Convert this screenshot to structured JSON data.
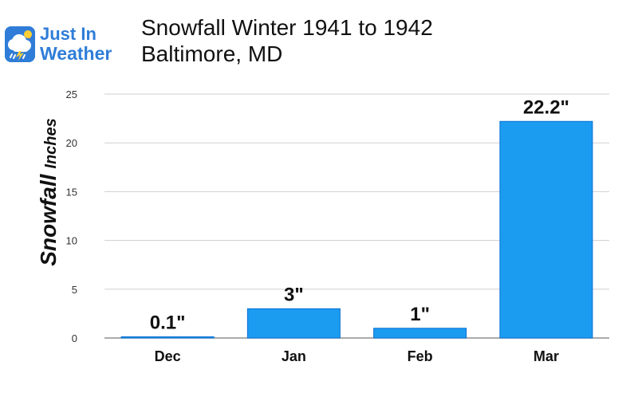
{
  "branding": {
    "line1": "Just In",
    "line2": "Weather",
    "icon_name": "weather-app-icon",
    "accent": "#2f7dd8"
  },
  "chart": {
    "title_line1": "Snowfall Winter 1941 to 1942",
    "title_line2": "Baltimore, MD",
    "ylabel_main": "Snowfall",
    "ylabel_unit": "Inches"
  },
  "chart_data": {
    "type": "bar",
    "categories": [
      "Dec",
      "Jan",
      "Feb",
      "Mar"
    ],
    "values": [
      0.1,
      3,
      1,
      22.2
    ],
    "data_labels": [
      "0.1\"",
      "3\"",
      "1\"",
      "22.2\""
    ],
    "ylim": [
      0,
      25
    ],
    "yticks": [
      0,
      5,
      10,
      15,
      20,
      25
    ],
    "grid": true,
    "legend": "none",
    "bar_color": "#1b9cf0",
    "bar_edge": "#0a6fd4",
    "grid_color": "#cfcfcf"
  }
}
